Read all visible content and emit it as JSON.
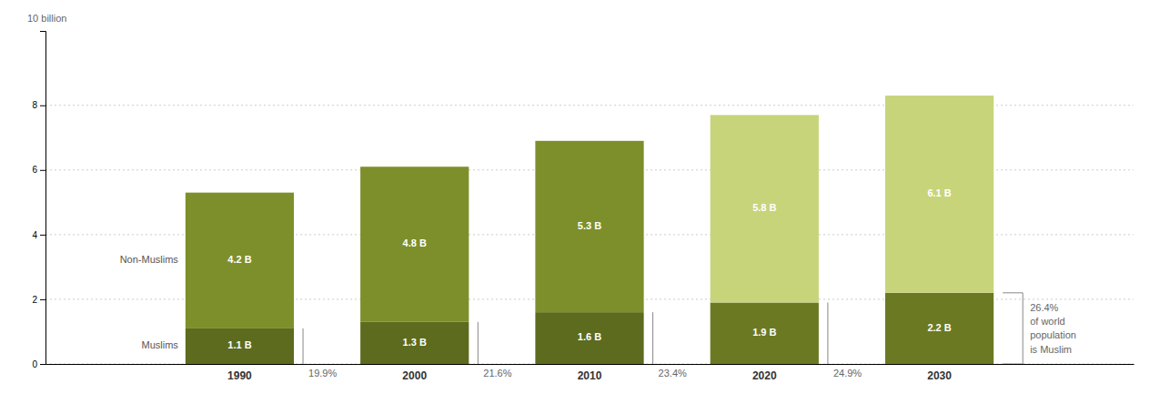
{
  "chart_data": {
    "type": "bar",
    "stacked": true,
    "data_labels": true,
    "grid": true,
    "y_label": "10 billion",
    "categories": [
      "1990",
      "2000",
      "2010",
      "2020",
      "2030"
    ],
    "series": [
      {
        "name": "Muslims",
        "colors": [
          "#5c6b1e",
          "#5c6b1e",
          "#5c6b1e",
          "#6b7a22",
          "#6b7a22"
        ],
        "values": [
          1.1,
          1.3,
          1.6,
          1.9,
          2.2
        ],
        "value_labels": [
          "1.1 B",
          "1.3 B",
          "1.6 B",
          "1.9 B",
          "2.2 B"
        ]
      },
      {
        "name": "Non-Muslims",
        "colors": [
          "#7d8f2a",
          "#7d8f2a",
          "#7d8f2a",
          "#c8d47a",
          "#c8d47a"
        ],
        "values": [
          4.2,
          4.8,
          5.3,
          5.8,
          6.1
        ],
        "value_labels": [
          "4.2 B",
          "4.8 B",
          "5.3 B",
          "5.8 B",
          "6.1 B"
        ]
      }
    ],
    "annotations": [
      {
        "category": "1990",
        "lines": [
          "19.9%"
        ]
      },
      {
        "category": "2000",
        "lines": [
          "21.6%"
        ]
      },
      {
        "category": "2010",
        "lines": [
          "23.4%"
        ]
      },
      {
        "category": "2020",
        "lines": [
          "24.9%"
        ]
      },
      {
        "category": "2030",
        "lines": [
          "26.4%",
          "of world",
          "population",
          "is Muslim"
        ]
      }
    ],
    "ylim": [
      0,
      10.3
    ],
    "yticks": [
      0,
      2,
      4,
      6,
      8
    ]
  }
}
